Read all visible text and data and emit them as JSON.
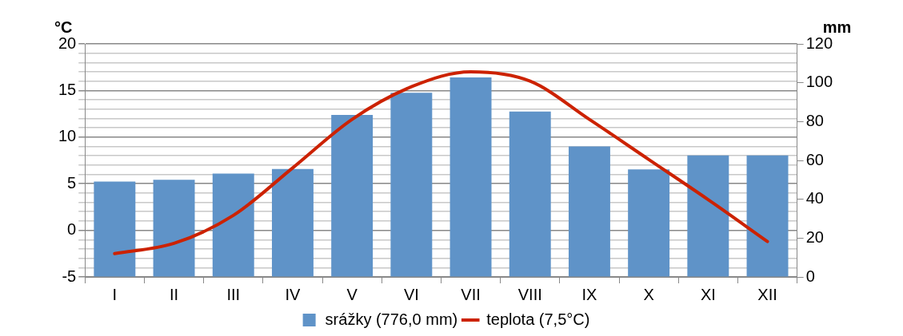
{
  "chart_data": {
    "type": "bar",
    "categories": [
      "I",
      "II",
      "III",
      "IV",
      "V",
      "VI",
      "VII",
      "VIII",
      "IX",
      "X",
      "XI",
      "XII"
    ],
    "ylabel": "°C",
    "y2label": "mm",
    "series": [
      {
        "name": "srážky (776,0 mm)",
        "axis": "y2",
        "color": "#5f93c8",
        "values": [
          49.1,
          50.0,
          53.2,
          55.6,
          83.4,
          94.8,
          102.7,
          85.2,
          67.2,
          55.4,
          62.6,
          62.6
        ]
      },
      {
        "name": "teplota (7,5°C)",
        "type": "line",
        "axis": "y",
        "color": "#cc2200",
        "marker": "none",
        "line_style": "solid",
        "values": [
          -2.5,
          -1.4,
          1.6,
          6.7,
          11.9,
          15.4,
          17.0,
          16.0,
          11.9,
          7.6,
          3.3,
          -1.2
        ]
      }
    ],
    "ylim": [
      -5,
      20
    ],
    "yticks": [
      -5,
      {
        "value": -4,
        "label": null
      },
      {
        "value": -3,
        "label": null
      },
      {
        "value": -2,
        "label": null
      },
      {
        "value": -1,
        "label": null
      },
      0,
      {
        "value": 1,
        "label": null
      },
      {
        "value": 2,
        "label": null
      },
      {
        "value": 3,
        "label": null
      },
      {
        "value": 4,
        "label": null
      },
      5,
      {
        "value": 6,
        "label": null
      },
      {
        "value": 7,
        "label": null
      },
      {
        "value": 8,
        "label": null
      },
      {
        "value": 9,
        "label": null
      },
      10,
      {
        "value": 11,
        "label": null
      },
      {
        "value": 12,
        "label": null
      },
      {
        "value": 13,
        "label": null
      },
      {
        "value": 14,
        "label": null
      },
      15,
      {
        "value": 16,
        "label": null
      },
      {
        "value": 17,
        "label": null
      },
      {
        "value": 18,
        "label": null
      },
      {
        "value": 19,
        "label": null
      },
      20
    ],
    "y2lim": [
      0,
      120
    ],
    "y2ticks": [
      0,
      20,
      40,
      60,
      80,
      100,
      120
    ],
    "grid": "y",
    "legend": "bottom"
  }
}
